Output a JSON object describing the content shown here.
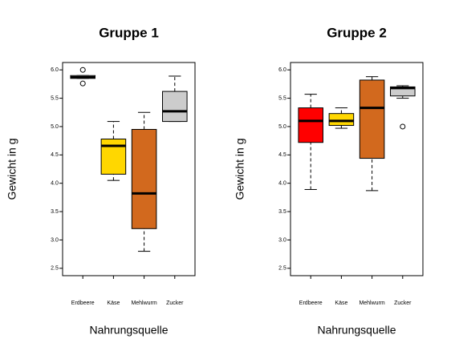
{
  "chart_data": [
    {
      "type": "box",
      "title": "Gruppe 1",
      "xlabel": "Nahrungsquelle",
      "ylabel": "Gewicht in g",
      "categories": [
        "Erdbeere",
        "Käse",
        "Mehlwurm",
        "Zucker"
      ],
      "boxes": [
        {
          "color": "#ffffff",
          "min": 5.85,
          "q1": 5.85,
          "median": 5.87,
          "q3": 5.9,
          "max": 5.9,
          "outliers": [
            6.0,
            5.76
          ]
        },
        {
          "color": "#ffd700",
          "min": 4.05,
          "q1": 4.16,
          "median": 4.66,
          "q3": 4.78,
          "max": 5.09,
          "outliers": []
        },
        {
          "color": "#d2691e",
          "min": 2.8,
          "q1": 3.2,
          "median": 3.82,
          "q3": 4.95,
          "max": 5.25,
          "outliers": []
        },
        {
          "color": "#cccccc",
          "min": 5.09,
          "q1": 5.09,
          "median": 5.27,
          "q3": 5.62,
          "max": 5.89,
          "outliers": []
        }
      ],
      "ylim": [
        2.37,
        6.13
      ],
      "yticks": [
        2.5,
        {
          "value": 3,
          "label": "3.0"
        },
        3.5,
        {
          "value": 4,
          "label": "4.0"
        },
        4.5,
        {
          "value": 5,
          "label": "5.0"
        },
        5.5,
        {
          "value": 6,
          "label": "6.0"
        }
      ]
    },
    {
      "type": "box",
      "title": "Gruppe 2",
      "xlabel": "Nahrungsquelle",
      "ylabel": "Gewicht in g",
      "categories": [
        "Erdbeere",
        "Käse",
        "Mehlwurm",
        "Zucker"
      ],
      "boxes": [
        {
          "color": "#ff0000",
          "min": 3.89,
          "q1": 4.72,
          "median": 5.1,
          "q3": 5.33,
          "max": 5.57,
          "outliers": []
        },
        {
          "color": "#ffd700",
          "min": 4.97,
          "q1": 5.02,
          "median": 5.1,
          "q3": 5.23,
          "max": 5.33,
          "outliers": []
        },
        {
          "color": "#d2691e",
          "min": 3.87,
          "q1": 4.44,
          "median": 5.33,
          "q3": 5.82,
          "max": 5.88,
          "outliers": []
        },
        {
          "color": "#cccccc",
          "min": 5.5,
          "q1": 5.54,
          "median": 5.68,
          "q3": 5.7,
          "max": 5.72,
          "outliers": [
            5.0
          ]
        }
      ],
      "ylim": [
        2.37,
        6.13
      ],
      "yticks": [
        2.5,
        {
          "value": 3,
          "label": "3.0"
        },
        3.5,
        {
          "value": 4,
          "label": "4.0"
        },
        4.5,
        {
          "value": 5,
          "label": "5.0"
        },
        5.5,
        {
          "value": 6,
          "label": "6.0"
        }
      ]
    }
  ]
}
